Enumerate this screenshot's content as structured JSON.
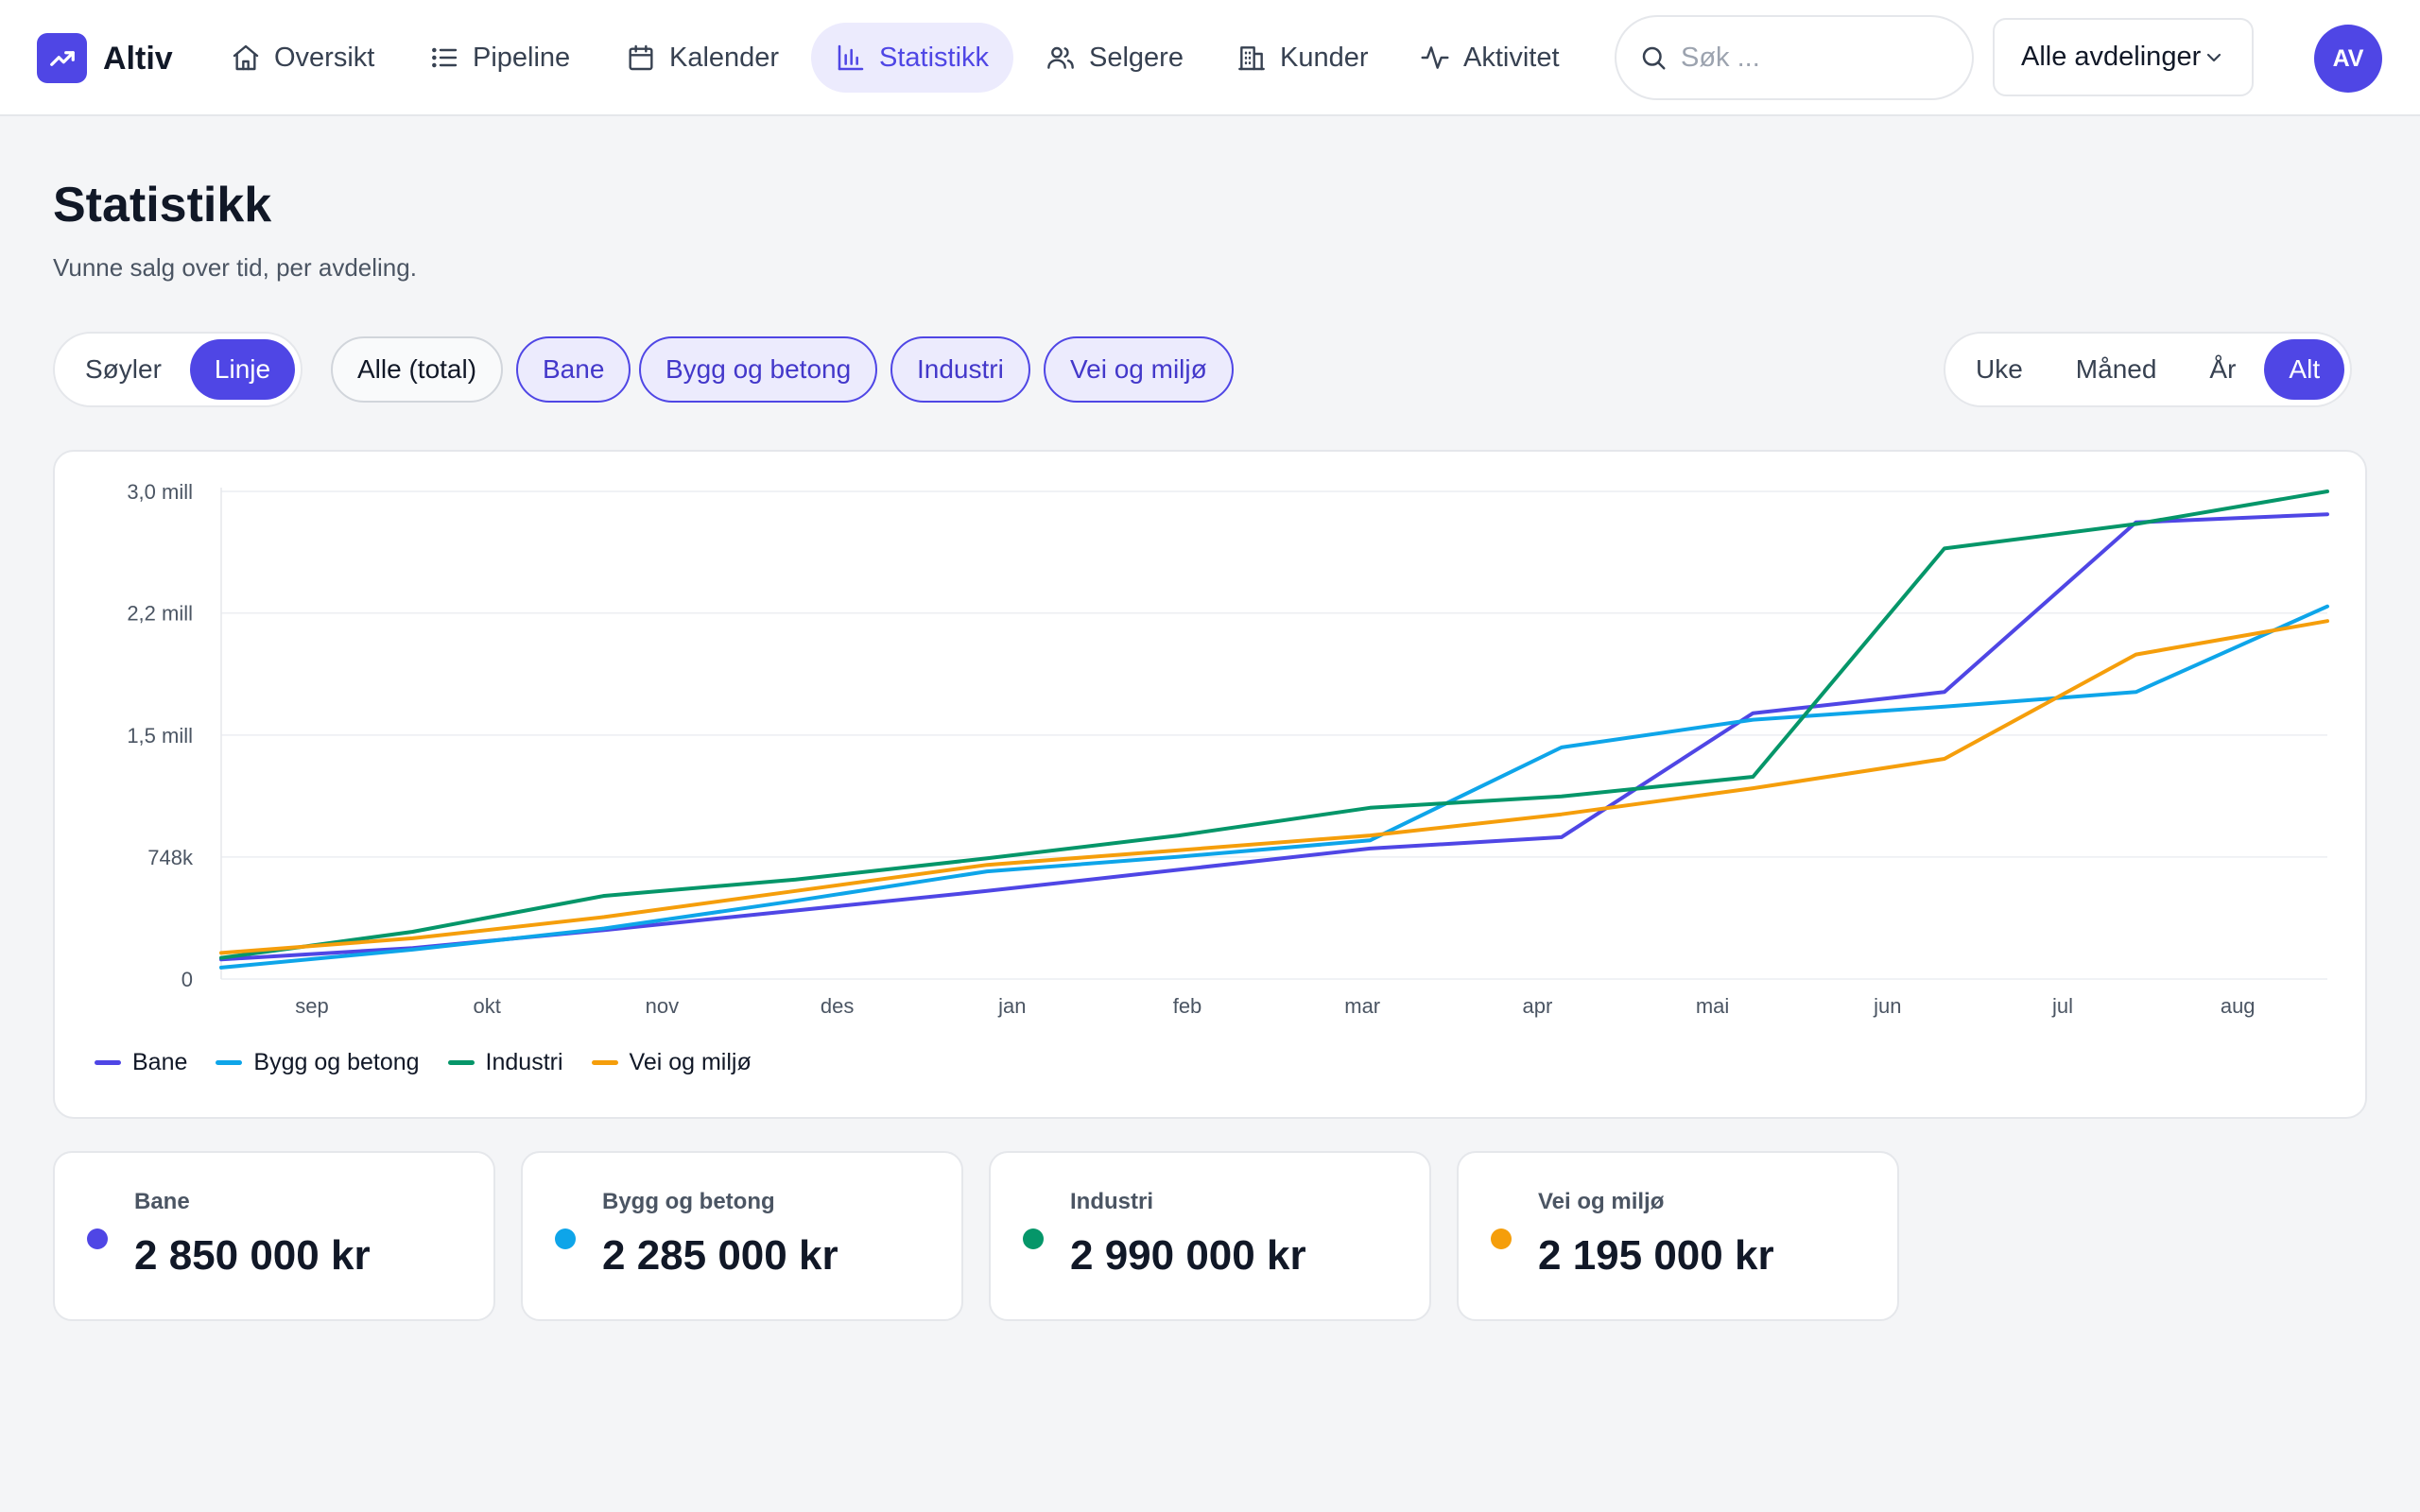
{
  "app": {
    "name": "Altiv"
  },
  "nav": {
    "items": [
      {
        "label": "Oversikt",
        "icon": "home-icon"
      },
      {
        "label": "Pipeline",
        "icon": "list-icon"
      },
      {
        "label": "Kalender",
        "icon": "calendar-icon"
      },
      {
        "label": "Statistikk",
        "icon": "bar-chart-icon",
        "active": true
      },
      {
        "label": "Selgere",
        "icon": "users-icon"
      },
      {
        "label": "Kunder",
        "icon": "building-icon"
      },
      {
        "label": "Aktivitet",
        "icon": "activity-icon"
      }
    ]
  },
  "search": {
    "placeholder": "Søk ..."
  },
  "department_select": {
    "value": "Alle avdelinger"
  },
  "user": {
    "initials": "AV"
  },
  "page": {
    "title": "Statistikk",
    "subtitle": "Vunne salg over tid, per avdeling."
  },
  "chart_type_toggle": {
    "options": [
      "Søyler",
      "Linje"
    ],
    "selected": "Linje"
  },
  "series_filters": {
    "options": [
      "Alle (total)",
      "Bane",
      "Bygg og betong",
      "Industri",
      "Vei og miljø"
    ],
    "selected": [
      "Bane",
      "Bygg og betong",
      "Industri",
      "Vei og miljø"
    ]
  },
  "period_toggle": {
    "options": [
      "Uke",
      "Måned",
      "År",
      "Alt"
    ],
    "selected": "Alt"
  },
  "colors": {
    "accent": "#4f46e5",
    "Bane": "#4f46e5",
    "Bygg og betong": "#0ea5e9",
    "Industri": "#059669",
    "Vei og miljø": "#f59e0b"
  },
  "chart_data": {
    "type": "line",
    "x": [
      "sep",
      "okt",
      "nov",
      "des",
      "jan",
      "feb",
      "mar",
      "apr",
      "mai",
      "jun",
      "jul",
      "aug"
    ],
    "y_ticks": [
      "0",
      "748k",
      "1,5 mill",
      "2,2 mill",
      "3,0 mill"
    ],
    "y_tick_values": [
      0,
      748000,
      1496000,
      2244000,
      2990000
    ],
    "ylim": [
      0,
      2990000
    ],
    "grid": true,
    "legend": "bottom-left",
    "series": [
      {
        "name": "Bane",
        "values": [
          120000,
          190000,
          300000,
          420000,
          540000,
          670000,
          800000,
          870000,
          1630000,
          1760000,
          2800000,
          2850000
        ]
      },
      {
        "name": "Bygg og betong",
        "values": [
          70000,
          180000,
          310000,
          480000,
          660000,
          750000,
          850000,
          1420000,
          1590000,
          1670000,
          1760000,
          2285000
        ]
      },
      {
        "name": "Industri",
        "values": [
          130000,
          290000,
          510000,
          610000,
          740000,
          880000,
          1050000,
          1120000,
          1240000,
          2640000,
          2790000,
          2990000
        ]
      },
      {
        "name": "Vei og miljø",
        "values": [
          160000,
          250000,
          380000,
          540000,
          700000,
          790000,
          880000,
          1010000,
          1170000,
          1350000,
          1990000,
          2195000
        ]
      }
    ]
  },
  "summary": [
    {
      "name": "Bane",
      "value": "2 850 000 kr"
    },
    {
      "name": "Bygg og betong",
      "value": "2 285 000 kr"
    },
    {
      "name": "Industri",
      "value": "2 990 000 kr"
    },
    {
      "name": "Vei og miljø",
      "value": "2 195 000 kr"
    }
  ]
}
